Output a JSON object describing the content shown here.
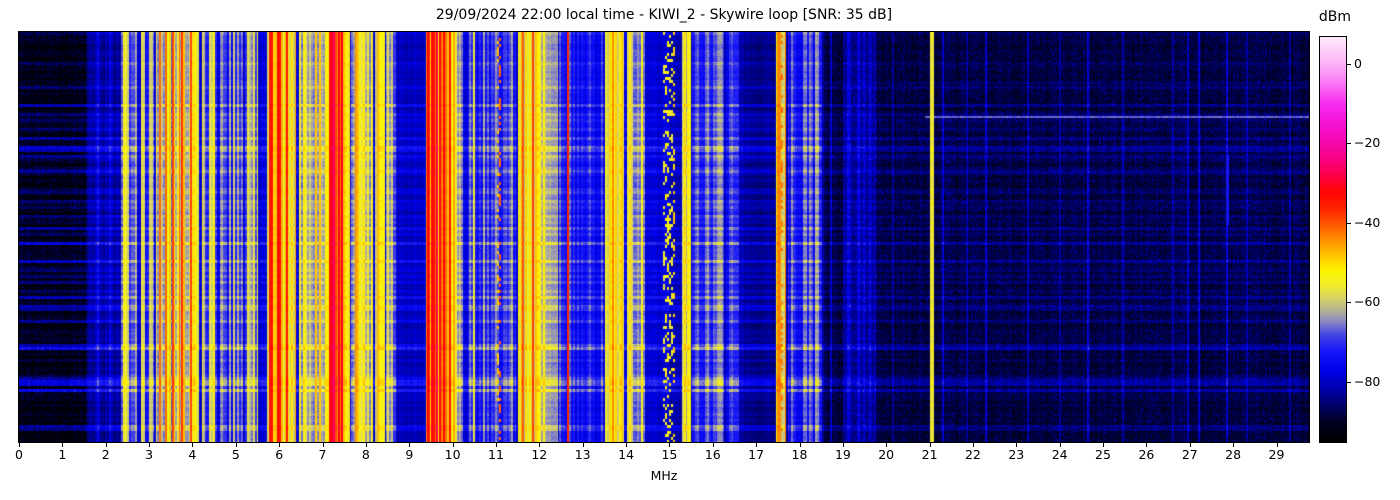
{
  "figure": {
    "title": "29/09/2024 22:00 local time - KIWI_2 - Skywire loop [SNR: 35 dB]"
  },
  "x_axis": {
    "label": "MHz",
    "min": 0,
    "max": 29.75,
    "ticks": [
      "0",
      "1",
      "2",
      "3",
      "4",
      "5",
      "6",
      "7",
      "8",
      "9",
      "10",
      "11",
      "12",
      "13",
      "14",
      "15",
      "16",
      "17",
      "18",
      "19",
      "20",
      "21",
      "22",
      "23",
      "24",
      "25",
      "26",
      "27",
      "28",
      "29"
    ]
  },
  "colorbar": {
    "unit": "dBm",
    "min": -95,
    "max": 6.8,
    "ticks": [
      {
        "v": 0,
        "label": "0"
      },
      {
        "v": -20,
        "label": "−20"
      },
      {
        "v": -40,
        "label": "−40"
      },
      {
        "v": -60,
        "label": "−60"
      },
      {
        "v": -80,
        "label": "−80"
      }
    ]
  },
  "chart_data": {
    "type": "heatmap",
    "subtype": "radio-spectrogram-waterfall",
    "title": "29/09/2024 22:00 local time - KIWI_2 - Skywire loop [SNR: 35 dB]",
    "xlabel": "MHz",
    "ylabel": "",
    "x_range_mhz": [
      0,
      29.75
    ],
    "value_range_dbm": [
      -95,
      6.8
    ],
    "colorbar_label": "dBm",
    "colorbar_ticks_dbm": [
      0,
      -20,
      -40,
      -60,
      -80
    ],
    "grid": false,
    "colormap_stops": [
      [
        -95,
        "#000000"
      ],
      [
        -90,
        "#000022"
      ],
      [
        -86,
        "#000066"
      ],
      [
        -82,
        "#0000aa"
      ],
      [
        -77,
        "#0000ea"
      ],
      [
        -72,
        "#1a1af8"
      ],
      [
        -68,
        "#4747e2"
      ],
      [
        -65,
        "#8886c4"
      ],
      [
        -62,
        "#b5b295"
      ],
      [
        -59,
        "#d8d368"
      ],
      [
        -56,
        "#efeb2e"
      ],
      [
        -52,
        "#fff600"
      ],
      [
        -48,
        "#ffc400"
      ],
      [
        -44,
        "#ff8e00"
      ],
      [
        -40,
        "#ff5500"
      ],
      [
        -36,
        "#ff2000"
      ],
      [
        -32,
        "#ff0505"
      ],
      [
        -28,
        "#fe0047"
      ],
      [
        -24,
        "#f90382"
      ],
      [
        -20,
        "#f406ab"
      ],
      [
        -15,
        "#f513d4"
      ],
      [
        -10,
        "#f72cf1"
      ],
      [
        -5,
        "#fa74f5"
      ],
      [
        0,
        "#fcb2f9"
      ],
      [
        6.8,
        "#feeafd"
      ]
    ],
    "noise_floors": [
      {
        "f0": 0.0,
        "f1": 1.55,
        "lvl": -93.5,
        "ra": 1.7
      },
      {
        "f0": 1.55,
        "f1": 2.35,
        "lvl": -84,
        "ra": 1.2
      },
      {
        "f0": 2.35,
        "f1": 8.7,
        "lvl": -79,
        "ra": 0.9
      },
      {
        "f0": 8.7,
        "f1": 9.35,
        "lvl": -81,
        "ra": 0.9
      },
      {
        "f0": 9.35,
        "f1": 15.0,
        "lvl": -79,
        "ra": 0.9
      },
      {
        "f0": 15.0,
        "f1": 16.7,
        "lvl": -82,
        "ra": 1.0
      },
      {
        "f0": 16.7,
        "f1": 18.55,
        "lvl": -84,
        "ra": 1.0
      },
      {
        "f0": 18.55,
        "f1": 29.75,
        "lvl": -90,
        "ra": 0.7
      }
    ],
    "bands": [
      {
        "f0": 1.55,
        "f1": 2.33,
        "lo": -86,
        "hi": -76,
        "p": 0,
        "pk": 0
      },
      {
        "f0": 2.33,
        "f1": 2.72,
        "lo": -72,
        "hi": -54,
        "p": 0.05,
        "pk": -50
      },
      {
        "f0": 2.8,
        "f1": 3.1,
        "lo": -75,
        "hi": -57,
        "p": 0.04,
        "pk": -53
      },
      {
        "f0": 3.15,
        "f1": 3.7,
        "lo": -68,
        "hi": -50,
        "p": 0.09,
        "pk": -42
      },
      {
        "f0": 3.7,
        "f1": 4.15,
        "lo": -64,
        "hi": -46,
        "p": 0.11,
        "pk": -39
      },
      {
        "f0": 4.2,
        "f1": 4.55,
        "lo": -73,
        "hi": -56,
        "p": 0.05,
        "pk": -52
      },
      {
        "f0": 4.62,
        "f1": 5.15,
        "lo": -77,
        "hi": -62,
        "p": 0.03,
        "pk": -58
      },
      {
        "f0": 5.2,
        "f1": 5.5,
        "lo": -71,
        "hi": -54,
        "p": 0.06,
        "pk": -50
      },
      {
        "f0": 5.7,
        "f1": 6.38,
        "lo": -60,
        "hi": -43,
        "p": 0.2,
        "pk": -34
      },
      {
        "f0": 6.45,
        "f1": 7.05,
        "lo": -67,
        "hi": -51,
        "p": 0.07,
        "pk": -48
      },
      {
        "f0": 7.05,
        "f1": 7.2,
        "lo": -56,
        "hi": -42,
        "p": 0.15,
        "pk": -34
      },
      {
        "f0": 7.2,
        "f1": 7.5,
        "lo": -48,
        "hi": -34,
        "p": 0.35,
        "pk": -30
      },
      {
        "f0": 7.5,
        "f1": 7.62,
        "lo": -56,
        "hi": -42,
        "p": 0.15,
        "pk": -36
      },
      {
        "f0": 7.65,
        "f1": 8.15,
        "lo": -67,
        "hi": -51,
        "p": 0.09,
        "pk": -47
      },
      {
        "f0": 8.2,
        "f1": 8.42,
        "lo": -65,
        "hi": -51,
        "p": 0.13,
        "pk": -47
      },
      {
        "f0": 8.45,
        "f1": 8.68,
        "lo": -71,
        "hi": -57,
        "p": 0.04,
        "pk": -54
      },
      {
        "f0": 9.38,
        "f1": 10.05,
        "lo": -57,
        "hi": -40,
        "p": 0.22,
        "pk": -33
      },
      {
        "f0": 10.05,
        "f1": 10.22,
        "lo": -67,
        "hi": -55,
        "p": 0.05,
        "pk": -51
      },
      {
        "f0": 10.35,
        "f1": 11.45,
        "lo": -76,
        "hi": -63,
        "p": 0.025,
        "pk": -58
      },
      {
        "f0": 11.02,
        "f1": 11.1,
        "lo": -52,
        "hi": -40,
        "p": 0,
        "pk": -40,
        "dots": true
      },
      {
        "f0": 11.5,
        "f1": 12.12,
        "lo": -63,
        "hi": -46,
        "p": 0.12,
        "pk": -38
      },
      {
        "f0": 12.0,
        "f1": 12.42,
        "lo": -65,
        "hi": -61,
        "p": 0,
        "pk": 0
      },
      {
        "f0": 12.45,
        "f1": 13.45,
        "lo": -78,
        "hi": -67,
        "p": 0.02,
        "pk": -62
      },
      {
        "f0": 13.5,
        "f1": 13.95,
        "lo": -61,
        "hi": -47,
        "p": 0.12,
        "pk": -42
      },
      {
        "f0": 14.0,
        "f1": 14.42,
        "lo": -68,
        "hi": -54,
        "p": 0.05,
        "pk": -51
      },
      {
        "f0": 14.85,
        "f1": 15.12,
        "lo": -58,
        "hi": -48,
        "p": 0,
        "pk": -48,
        "dots": true
      },
      {
        "f0": 15.28,
        "f1": 15.48,
        "lo": -64,
        "hi": -52,
        "p": 0.08,
        "pk": -50
      },
      {
        "f0": 15.5,
        "f1": 16.25,
        "lo": -75,
        "hi": -62,
        "p": 0.04,
        "pk": -60
      },
      {
        "f0": 16.02,
        "f1": 16.22,
        "lo": -70,
        "hi": -62,
        "p": 0,
        "pk": 0
      },
      {
        "f0": 16.3,
        "f1": 16.6,
        "lo": -78,
        "hi": -68,
        "p": 0,
        "pk": 0
      },
      {
        "f0": 17.45,
        "f1": 17.68,
        "lo": -60,
        "hi": -46,
        "p": 0.15,
        "pk": -44
      },
      {
        "f0": 17.52,
        "f1": 17.6,
        "lo": -46,
        "hi": -38,
        "p": 0,
        "pk": 0,
        "dots": true
      },
      {
        "f0": 17.72,
        "f1": 18.5,
        "lo": -77,
        "hi": -63,
        "p": 0.03,
        "pk": -60
      },
      {
        "f0": 19.0,
        "f1": 19.75,
        "lo": -86,
        "hi": -79,
        "p": 0,
        "pk": 0
      }
    ],
    "carriers": [
      {
        "f": 3.55,
        "lvl": -39,
        "w": 1
      },
      {
        "f": 3.95,
        "lvl": -39,
        "w": 1
      },
      {
        "f": 5.8,
        "lvl": -35,
        "w": 2
      },
      {
        "f": 6.0,
        "lvl": -35,
        "w": 1
      },
      {
        "f": 6.18,
        "lvl": -36,
        "w": 1
      },
      {
        "f": 7.2,
        "lvl": -31,
        "w": 2
      },
      {
        "f": 7.26,
        "lvl": -27,
        "w": 1
      },
      {
        "f": 7.36,
        "lvl": -31,
        "w": 1
      },
      {
        "f": 7.44,
        "lvl": -33,
        "w": 1
      },
      {
        "f": 9.45,
        "lvl": -34,
        "w": 1
      },
      {
        "f": 9.62,
        "lvl": -28,
        "w": 1
      },
      {
        "f": 9.78,
        "lvl": -33,
        "w": 1
      },
      {
        "f": 9.92,
        "lvl": -35,
        "w": 1
      },
      {
        "f": 11.62,
        "lvl": -40,
        "w": 1
      },
      {
        "f": 11.85,
        "lvl": -38,
        "w": 1
      },
      {
        "f": 12.65,
        "lvl": -37,
        "w": 1
      },
      {
        "f": 13.69,
        "lvl": -44,
        "w": 1
      },
      {
        "f": 15.35,
        "lvl": -52,
        "w": 1
      },
      {
        "f": 17.55,
        "lvl": -46,
        "w": 1
      },
      {
        "f": 21.05,
        "lvl": -58,
        "w": 2
      },
      {
        "f": 18.72,
        "lvl": -81,
        "w": 1
      },
      {
        "f": 19.35,
        "lvl": -80,
        "w": 1
      },
      {
        "f": 20.15,
        "lvl": -85,
        "w": 1
      },
      {
        "f": 21.3,
        "lvl": -81,
        "w": 1
      },
      {
        "f": 21.85,
        "lvl": -84,
        "w": 1
      },
      {
        "f": 22.3,
        "lvl": -82,
        "w": 1
      },
      {
        "f": 23.25,
        "lvl": -84,
        "w": 1
      },
      {
        "f": 24.0,
        "lvl": -85,
        "w": 1
      },
      {
        "f": 24.65,
        "lvl": -81,
        "w": 1
      },
      {
        "f": 25.45,
        "lvl": -85,
        "w": 1
      },
      {
        "f": 26.6,
        "lvl": -84,
        "w": 1
      },
      {
        "f": 26.95,
        "lvl": -83,
        "w": 1
      },
      {
        "f": 27.2,
        "lvl": -81,
        "w": 1
      },
      {
        "f": 27.85,
        "lvl": -80,
        "w": 1
      },
      {
        "f": 28.3,
        "lvl": -84,
        "w": 1
      },
      {
        "f": 29.3,
        "lvl": -85,
        "w": 1
      }
    ],
    "features": {
      "horizontal_lines": [
        {
          "f0": 20.9,
          "f1": 29.75,
          "y_frac": 0.205,
          "thickness": 2,
          "lvl": -67
        },
        {
          "f0": 18.55,
          "f1": 29.75,
          "y_frac": 0.124,
          "thickness": 1,
          "lvl": -84
        },
        {
          "f0": 18.55,
          "f1": 29.75,
          "y_frac": 0.344,
          "thickness": 1,
          "lvl": -84
        }
      ],
      "vertical_streaks": [
        {
          "f": 27.85,
          "y0_frac": 0.3,
          "y1_frac": 0.47,
          "lvl": -73,
          "w": 1
        }
      ]
    }
  }
}
